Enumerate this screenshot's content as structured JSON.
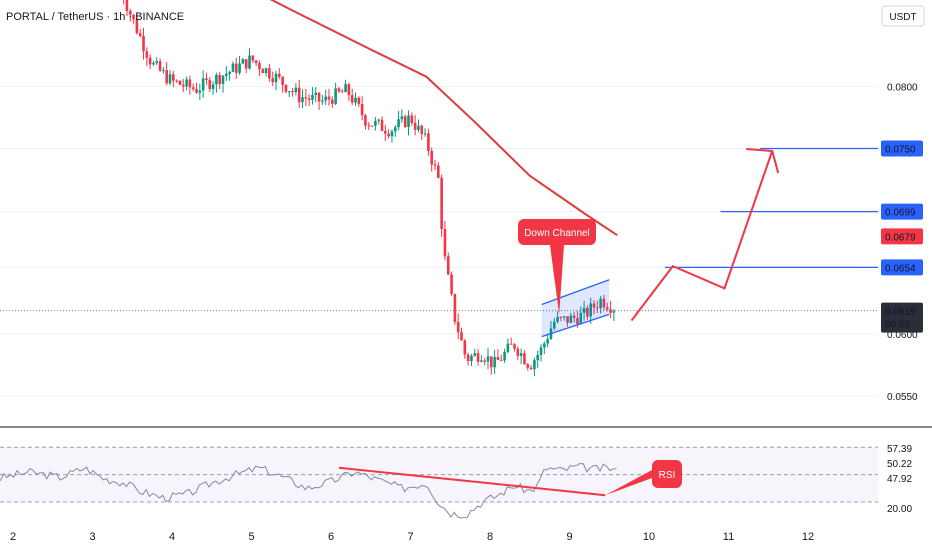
{
  "header": {
    "symbol_line": "PORTAL / TetherUS · 1h · BINANCE"
  },
  "currency_badge": "USDT",
  "chart_data": [
    {
      "type": "candlestick",
      "title": "PORTAL / TetherUS · 1h · BINANCE",
      "y_axis": {
        "ticks": [
          "0.0800",
          "0.0750",
          "0.0699",
          "0.0654",
          "0.0600",
          "0.0550"
        ],
        "range": [
          0.0525,
          0.087
        ]
      },
      "x_axis": {
        "ticks": [
          "2",
          "3",
          "4",
          "5",
          "6",
          "7",
          "8",
          "9",
          "10",
          "11",
          "12"
        ]
      },
      "price_anchors": [
        [
          3.35,
          0.088
        ],
        [
          3.5,
          0.0855
        ],
        [
          3.75,
          0.0818
        ],
        [
          4.0,
          0.0804
        ],
        [
          4.3,
          0.0798
        ],
        [
          4.6,
          0.0808
        ],
        [
          5.0,
          0.0822
        ],
        [
          5.3,
          0.0808
        ],
        [
          5.6,
          0.0792
        ],
        [
          5.9,
          0.0788
        ],
        [
          6.2,
          0.0797
        ],
        [
          6.45,
          0.0772
        ],
        [
          6.75,
          0.0765
        ],
        [
          7.0,
          0.0775
        ],
        [
          7.2,
          0.0755
        ],
        [
          7.35,
          0.0725
        ],
        [
          7.42,
          0.0665
        ],
        [
          7.55,
          0.0615
        ],
        [
          7.7,
          0.058
        ],
        [
          7.9,
          0.0585
        ],
        [
          8.05,
          0.0575
        ],
        [
          8.3,
          0.0592
        ],
        [
          8.5,
          0.0575
        ],
        [
          8.65,
          0.0588
        ],
        [
          8.8,
          0.061
        ],
        [
          9.0,
          0.0612
        ],
        [
          9.2,
          0.0616
        ],
        [
          9.4,
          0.0628
        ],
        [
          9.6,
          0.062
        ]
      ],
      "ma_line": {
        "color": "#e03b3b",
        "points": [
          [
            3.8,
            0.0915
          ],
          [
            4.5,
            0.0895
          ],
          [
            5.5,
            0.0862
          ],
          [
            6.5,
            0.083
          ],
          [
            7.2,
            0.0808
          ],
          [
            7.8,
            0.0772
          ],
          [
            8.5,
            0.0728
          ],
          [
            9.2,
            0.0697
          ],
          [
            9.6,
            0.068
          ]
        ]
      },
      "levels": [
        {
          "value": 0.075,
          "label": "0.0750",
          "start_x": 11.4,
          "color": "#2962ff"
        },
        {
          "value": 0.0699,
          "label": "0.0699",
          "start_x": 10.9,
          "color": "#2962ff"
        },
        {
          "value": 0.0654,
          "label": "0.0654",
          "start_x": 10.2,
          "color": "#2962ff"
        }
      ],
      "ma_label": {
        "value": 0.0679,
        "label": "0.0679",
        "color": "#f23645"
      },
      "current_price": {
        "value": 0.0619,
        "label": "0.0619",
        "countdown": "00:55"
      },
      "channel": {
        "upper": [
          [
            8.65,
            0.0624
          ],
          [
            9.5,
            0.0644
          ]
        ],
        "lower": [
          [
            8.65,
            0.0598
          ],
          [
            9.5,
            0.0616
          ]
        ],
        "color": "#2962ff"
      },
      "projection": {
        "color": "#f23645",
        "points": [
          [
            9.78,
            0.0611
          ],
          [
            10.3,
            0.0655
          ],
          [
            10.95,
            0.0637
          ],
          [
            11.55,
            0.0748
          ]
        ]
      },
      "callout": {
        "text": "Down Channel",
        "color": "#f23645"
      },
      "colors": {
        "up": "#089981",
        "down": "#f23645"
      }
    },
    {
      "type": "line",
      "title": "RSI",
      "y_axis": {
        "ticks": [
          "57.39",
          "50.22",
          "47.92",
          "20.00"
        ],
        "range": [
          14,
          84
        ]
      },
      "bands": [
        70,
        50,
        30
      ],
      "rsi_anchors": [
        [
          1.8,
          47
        ],
        [
          2.2,
          52
        ],
        [
          2.6,
          48
        ],
        [
          2.9,
          55
        ],
        [
          3.15,
          47
        ],
        [
          3.4,
          44
        ],
        [
          3.6,
          38
        ],
        [
          3.9,
          33
        ],
        [
          4.2,
          36
        ],
        [
          4.5,
          44
        ],
        [
          4.8,
          50
        ],
        [
          5.1,
          55
        ],
        [
          5.4,
          48
        ],
        [
          5.7,
          40
        ],
        [
          6.0,
          45
        ],
        [
          6.3,
          52
        ],
        [
          6.6,
          46
        ],
        [
          6.9,
          40
        ],
        [
          7.2,
          44
        ],
        [
          7.35,
          30
        ],
        [
          7.5,
          22
        ],
        [
          7.7,
          21
        ],
        [
          7.9,
          30
        ],
        [
          8.1,
          35
        ],
        [
          8.3,
          42
        ],
        [
          8.5,
          38
        ],
        [
          8.6,
          42
        ],
        [
          8.7,
          55
        ],
        [
          8.9,
          53
        ],
        [
          9.1,
          56
        ],
        [
          9.3,
          54
        ],
        [
          9.5,
          55
        ],
        [
          9.6,
          52
        ]
      ],
      "trendline": {
        "color": "#f23645",
        "points": [
          [
            6.1,
            55
          ],
          [
            9.45,
            35
          ]
        ]
      },
      "callout": {
        "text": "RSI",
        "color": "#f23645"
      },
      "line_color": "#7e8aa8"
    }
  ]
}
